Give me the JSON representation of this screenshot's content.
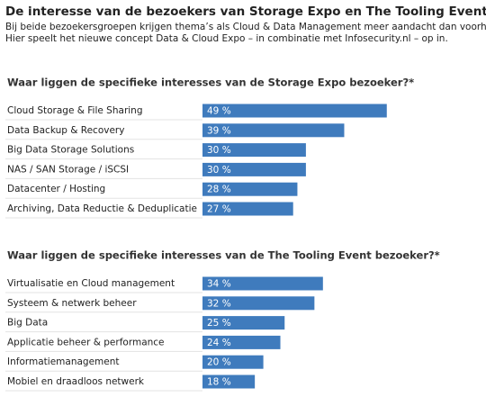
{
  "title": "De interesse van de bezoekers van Storage Expo en The Tooling Event is veranderd",
  "subtitle": [
    "Bij beide bezoekersgroepen krijgen thema’s als Cloud & Data Management meer aandacht dan voorheen.",
    "Hier speelt het nieuwe concept Data & Cloud Expo – in combinatie met Infosecurity.nl – op in."
  ],
  "chart_data": [
    {
      "type": "bar",
      "title": "Waar liggen de specifieke interesses van de Storage Expo bezoeker?*",
      "categories": [
        "Cloud Storage & File Sharing",
        "Data Backup & Recovery",
        "Big Data Storage Solutions",
        "NAS / SAN Storage / iSCSI",
        "Datacenter / Hosting",
        "Archiving, Data Reductie & Deduplicatie"
      ],
      "values": [
        49,
        39,
        30,
        30,
        28,
        27
      ],
      "value_labels": [
        "49 %",
        "39 %",
        "30 %",
        "30 %",
        "28 %",
        "27 %"
      ],
      "color": "#3f7bbd"
    },
    {
      "type": "bar",
      "title": "Waar liggen de specifieke interesses van de The Tooling Event bezoeker?*",
      "categories": [
        "Virtualisatie en Cloud management",
        "Systeem & netwerk beheer",
        "Big Data",
        "Applicatie beheer & performance",
        "Informatiemanagement",
        "Mobiel en draadloos netwerk"
      ],
      "values": [
        34,
        32,
        25,
        24,
        20,
        18
      ],
      "value_labels": [
        "34 %",
        "32 %",
        "25 %",
        "24 %",
        "20 %",
        "18 %"
      ],
      "color": "#3f7bbd"
    }
  ]
}
